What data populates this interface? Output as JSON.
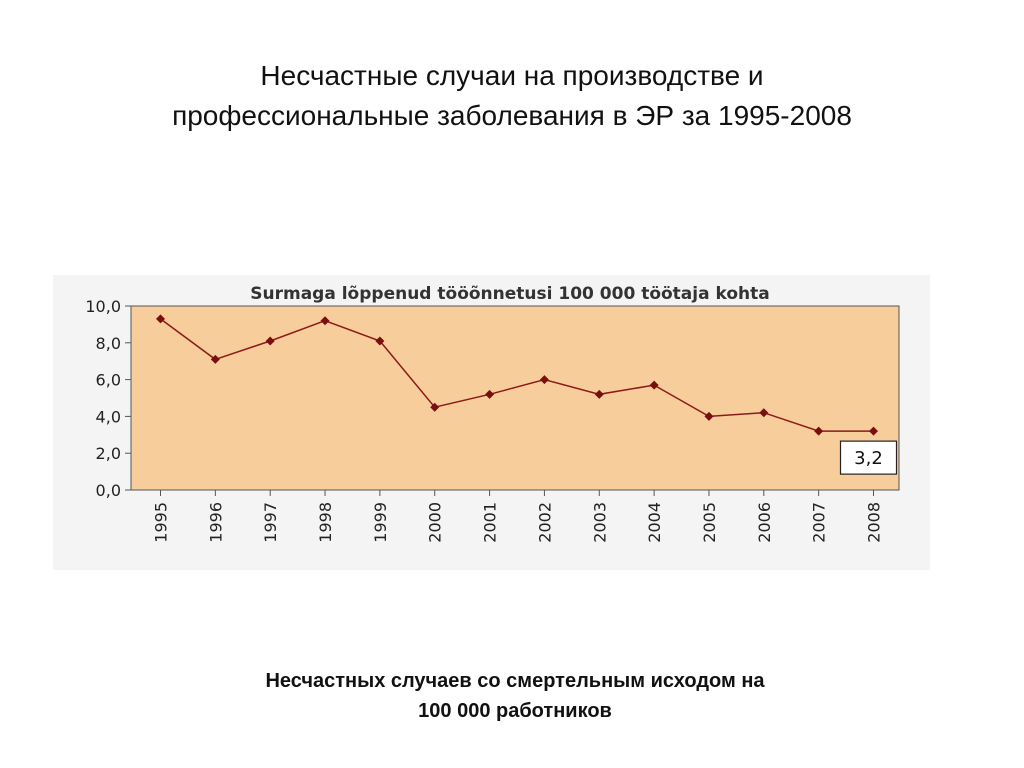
{
  "slide": {
    "title_line1": "Несчастные случаи на производстве и",
    "title_line2": "профессиональные заболевания в ЭР за 1995-2008",
    "caption_line1": "Несчастных случаев со смертельным исходом на",
    "caption_line2": "100 000 работников"
  },
  "chart_data": {
    "type": "line",
    "title": "Surmaga lõppenud tööõnnetusi 100 000 töötaja kohta",
    "xlabel": "",
    "ylabel": "",
    "categories": [
      "1995",
      "1996",
      "1997",
      "1998",
      "1999",
      "2000",
      "2001",
      "2002",
      "2003",
      "2004",
      "2005",
      "2006",
      "2007",
      "2008"
    ],
    "series": [
      {
        "values": [
          9.3,
          7.1,
          8.1,
          9.2,
          8.1,
          4.5,
          5.2,
          6.0,
          5.2,
          5.7,
          4.0,
          4.2,
          3.2,
          3.2
        ]
      }
    ],
    "ylim": [
      0,
      10
    ],
    "yticks": [
      0,
      2,
      4,
      6,
      8,
      10
    ],
    "ytick_labels": [
      "0,0",
      "2,0",
      "4,0",
      "6,0",
      "8,0",
      "10,0"
    ],
    "annotation": {
      "category": "2008",
      "text": "3,2"
    },
    "grid": false,
    "colors": {
      "plot_background": "#f8cd9c",
      "line": "#8c1a1a",
      "marker": "#7a0f0f",
      "axis": "#555555",
      "text": "#222222"
    }
  }
}
